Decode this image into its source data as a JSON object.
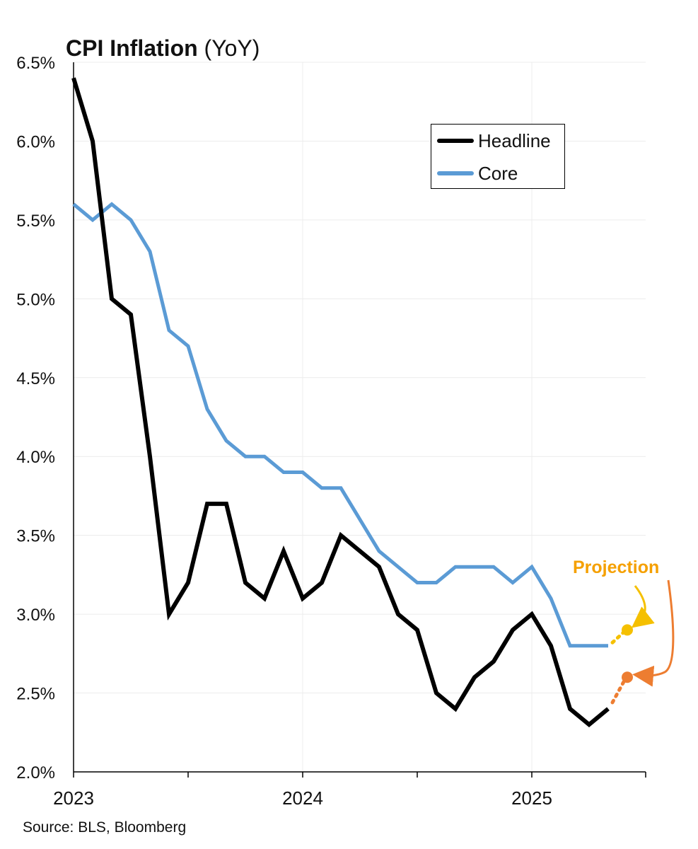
{
  "chart_data": {
    "type": "line",
    "title": "CPI Inflation",
    "subtitle": "(YoY)",
    "source": "Source: BLS, Bloomberg",
    "ylim": [
      2.0,
      6.5
    ],
    "yticks": [
      "2.0%",
      "2.5%",
      "3.0%",
      "3.5%",
      "4.0%",
      "4.5%",
      "5.0%",
      "5.5%",
      "6.0%",
      "6.5%"
    ],
    "xticks": [
      "2023",
      "2024",
      "2025"
    ],
    "x": [
      "2023-01",
      "2023-02",
      "2023-03",
      "2023-04",
      "2023-05",
      "2023-06",
      "2023-07",
      "2023-08",
      "2023-09",
      "2023-10",
      "2023-11",
      "2023-12",
      "2024-01",
      "2024-02",
      "2024-03",
      "2024-04",
      "2024-05",
      "2024-06",
      "2024-07",
      "2024-08",
      "2024-09",
      "2024-10",
      "2024-11",
      "2024-12",
      "2025-01",
      "2025-02",
      "2025-03",
      "2025-04",
      "2025-05",
      "2025-06"
    ],
    "grid": true,
    "legend_position": "top-right",
    "series": [
      {
        "name": "Headline",
        "color": "#000000",
        "values": [
          6.4,
          6.0,
          5.0,
          4.9,
          4.0,
          3.0,
          3.2,
          3.7,
          3.7,
          3.2,
          3.1,
          3.4,
          3.1,
          3.2,
          3.5,
          3.4,
          3.3,
          3.0,
          2.9,
          2.5,
          2.4,
          2.6,
          2.7,
          2.9,
          3.0,
          2.8,
          2.4,
          2.3,
          2.4,
          null
        ],
        "projection": {
          "x": "2025-06",
          "value": 2.6,
          "color": "#ED7D31"
        }
      },
      {
        "name": "Core",
        "color": "#5B9BD5",
        "values": [
          5.6,
          5.5,
          5.6,
          5.5,
          5.3,
          4.8,
          4.7,
          4.3,
          4.1,
          4.0,
          4.0,
          3.9,
          3.9,
          3.8,
          3.8,
          3.6,
          3.4,
          3.3,
          3.2,
          3.2,
          3.3,
          3.3,
          3.3,
          3.2,
          3.3,
          3.1,
          2.8,
          2.8,
          2.8,
          null
        ],
        "projection": {
          "x": "2025-06",
          "value": 2.9,
          "color": "#F5C000"
        }
      }
    ],
    "annotations": [
      {
        "text": "Projection",
        "color": "#F5A000"
      }
    ]
  }
}
